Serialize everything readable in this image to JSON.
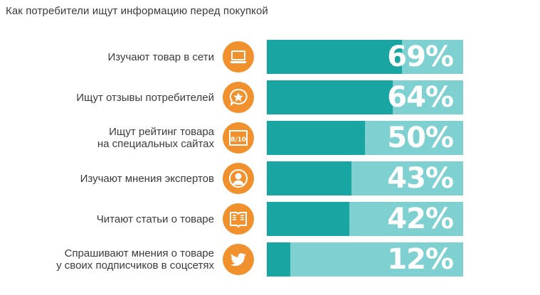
{
  "title": "Как потребители ищут информацию перед покупкой",
  "colors": {
    "accent_orange": "#f0912e",
    "bar_fill": "#19a6a2",
    "bar_track": "#7fd1d1",
    "text": "#3b3b3b"
  },
  "chart_data": {
    "type": "bar",
    "title": "Как потребители ищут информацию перед покупкой",
    "categories": [
      "Изучают товар в сети",
      "Ищут отзывы потребителей",
      "Ищут рейтинг товара на специальных сайтах",
      "Изучают мнения экспертов",
      "Читают статьи о товаре",
      "Спрашивают мнения о товаре у своих подписчиков в соцсетях"
    ],
    "values": [
      69,
      64,
      50,
      43,
      42,
      12
    ],
    "value_labels": [
      "69%",
      "64%",
      "50%",
      "43%",
      "42%",
      "12%"
    ],
    "ylim": [
      0,
      100
    ],
    "grid": false,
    "legend": "none"
  },
  "rows": [
    {
      "label_lines": [
        "Изучают товар в сети"
      ],
      "icon": "laptop-icon",
      "icon_text": ""
    },
    {
      "label_lines": [
        "Ищут отзывы потребителей"
      ],
      "icon": "star-speech-bubble-icon",
      "icon_text": ""
    },
    {
      "label_lines": [
        "Ищут рейтинг товара",
        "на специальных сайтах"
      ],
      "icon": "rating-badge-icon",
      "icon_text": "8/10"
    },
    {
      "label_lines": [
        "Изучают мнения экспертов"
      ],
      "icon": "person-icon",
      "icon_text": ""
    },
    {
      "label_lines": [
        "Читают статьи о товаре"
      ],
      "icon": "open-book-icon",
      "icon_text": ""
    },
    {
      "label_lines": [
        "Спрашивают мнения о товаре",
        "у своих подписчиков в соцсетях"
      ],
      "icon": "twitter-bird-icon",
      "icon_text": ""
    }
  ]
}
